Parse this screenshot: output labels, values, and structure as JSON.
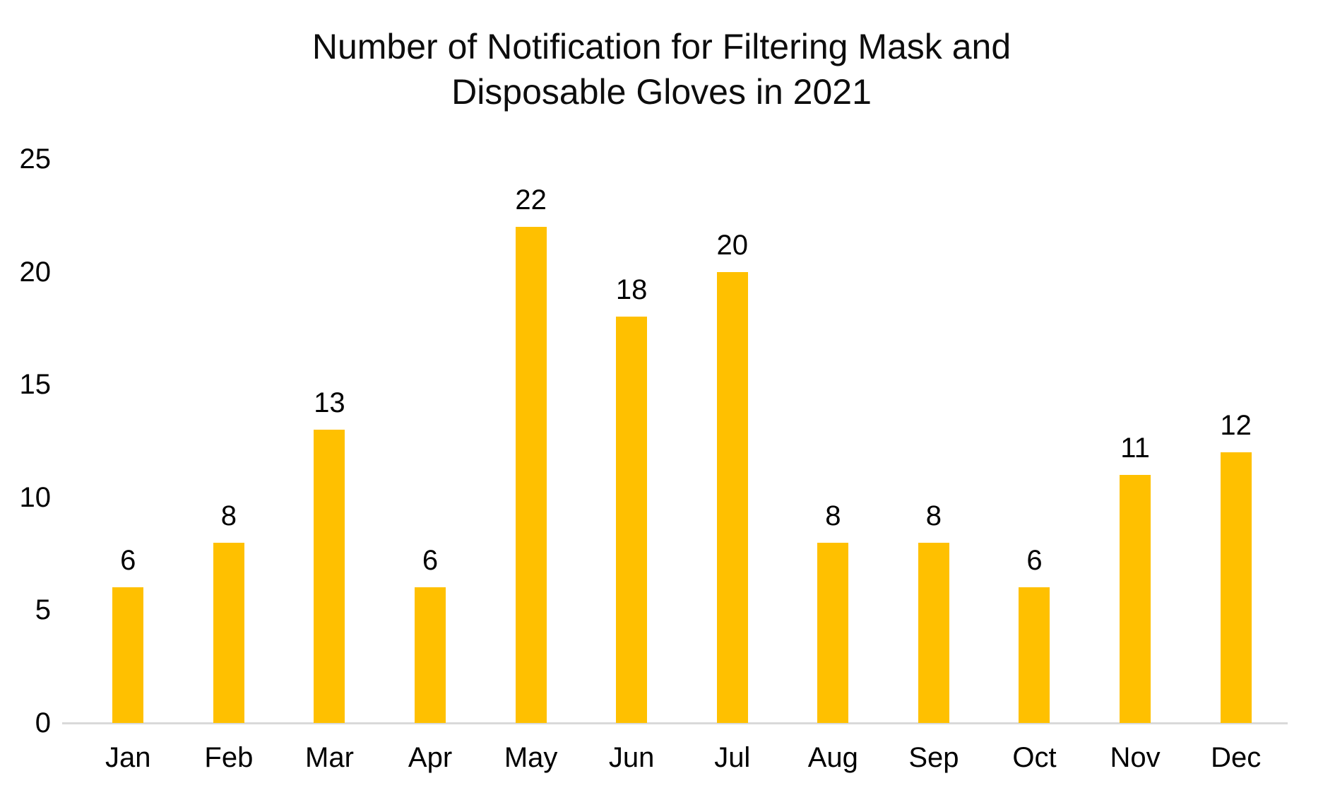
{
  "chart_data": {
    "type": "bar",
    "title": "Number of Notification for Filtering Mask and Disposable Gloves in 2021",
    "title_lines": [
      "Number of Notification for Filtering Mask and",
      "Disposable Gloves in 2021"
    ],
    "categories": [
      "Jan",
      "Feb",
      "Mar",
      "Apr",
      "May",
      "Jun",
      "Jul",
      "Aug",
      "Sep",
      "Oct",
      "Nov",
      "Dec"
    ],
    "values": [
      6,
      8,
      13,
      6,
      22,
      18,
      20,
      8,
      8,
      6,
      11,
      12
    ],
    "data_labels": [
      6,
      8,
      13,
      6,
      22,
      18,
      20,
      8,
      8,
      6,
      11,
      12
    ],
    "xlabel": "",
    "ylabel": "",
    "ylim": [
      0,
      25
    ],
    "yticks": [
      0,
      5,
      10,
      15,
      20,
      25
    ],
    "grid": false,
    "legend": false,
    "colors": {
      "bar": "#FFC000",
      "axis_line": "#D9D9D9",
      "text": "#000000"
    }
  }
}
